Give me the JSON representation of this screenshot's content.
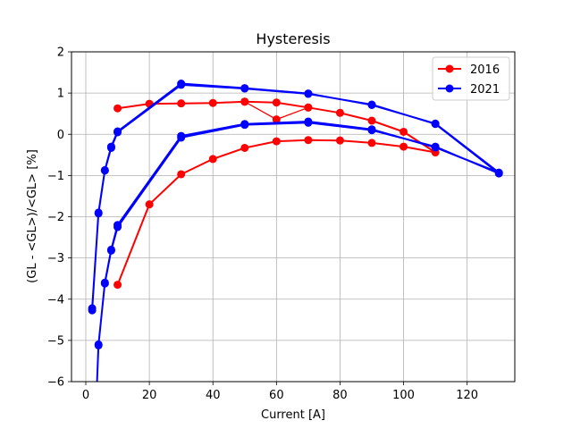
{
  "chart_data": {
    "type": "line",
    "title": "Hysteresis",
    "xlabel": "Current [A]",
    "ylabel": "(GL - <GL>)/<GL> [%]",
    "xlim": [
      -4.5,
      135
    ],
    "ylim": [
      -6,
      2
    ],
    "xticks": [
      0,
      20,
      40,
      60,
      80,
      100,
      120
    ],
    "yticks": [
      -6,
      -5,
      -4,
      -3,
      -2,
      -1,
      0,
      1,
      2
    ],
    "grid": true,
    "legend": "top-right",
    "series": [
      {
        "name": "2016",
        "color": "#ff0000",
        "points": [
          [
            10,
            -3.65
          ],
          [
            20,
            -1.7
          ],
          [
            30,
            -0.97
          ],
          [
            40,
            -0.6
          ],
          [
            50,
            -0.33
          ],
          [
            60,
            -0.17
          ],
          [
            70,
            -0.14
          ],
          [
            80,
            -0.15
          ],
          [
            90,
            -0.21
          ],
          [
            100,
            -0.3
          ],
          [
            110,
            -0.44
          ],
          [
            100,
            0.06
          ],
          [
            90,
            0.33
          ],
          [
            80,
            0.52
          ],
          [
            70,
            0.65
          ],
          [
            60,
            0.77
          ],
          [
            50,
            0.79
          ],
          [
            40,
            0.76
          ],
          [
            30,
            0.75
          ],
          [
            20,
            0.74
          ],
          [
            10,
            0.63
          ]
        ],
        "branch": [
          [
            70,
            0.65
          ],
          [
            60,
            0.36
          ],
          [
            50,
            0.79
          ]
        ]
      },
      {
        "name": "2021",
        "color": "#0000ff",
        "points": [
          [
            3.5,
            -6.1
          ],
          [
            4,
            -5.1
          ],
          [
            6,
            -3.62
          ],
          [
            8,
            -2.82
          ],
          [
            10,
            -2.25
          ],
          [
            30,
            -0.08
          ],
          [
            50,
            0.23
          ],
          [
            70,
            0.28
          ],
          [
            90,
            0.1
          ],
          [
            110,
            -0.3
          ],
          [
            130,
            -0.95
          ],
          [
            110,
            0.25
          ],
          [
            90,
            0.72
          ],
          [
            70,
            0.98
          ],
          [
            50,
            1.11
          ],
          [
            30,
            1.2
          ],
          [
            10,
            0.05
          ],
          [
            8,
            -0.33
          ],
          [
            6,
            -0.88
          ],
          [
            4,
            -1.92
          ],
          [
            2,
            -4.22
          ],
          [
            2,
            -4.27
          ],
          [
            4,
            -1.9
          ],
          [
            6,
            -0.87
          ],
          [
            8,
            -0.3
          ],
          [
            10,
            0.07
          ],
          [
            30,
            1.23
          ],
          [
            50,
            1.12
          ],
          [
            70,
            0.99
          ],
          [
            90,
            0.71
          ],
          [
            110,
            0.26
          ],
          [
            130,
            -0.93
          ],
          [
            110,
            -0.32
          ],
          [
            90,
            0.12
          ],
          [
            70,
            0.31
          ],
          [
            50,
            0.25
          ],
          [
            30,
            -0.04
          ],
          [
            10,
            -2.2
          ],
          [
            8,
            -2.8
          ],
          [
            6,
            -3.6
          ],
          [
            4,
            -5.12
          ],
          [
            3.5,
            -6.1
          ]
        ]
      }
    ]
  }
}
